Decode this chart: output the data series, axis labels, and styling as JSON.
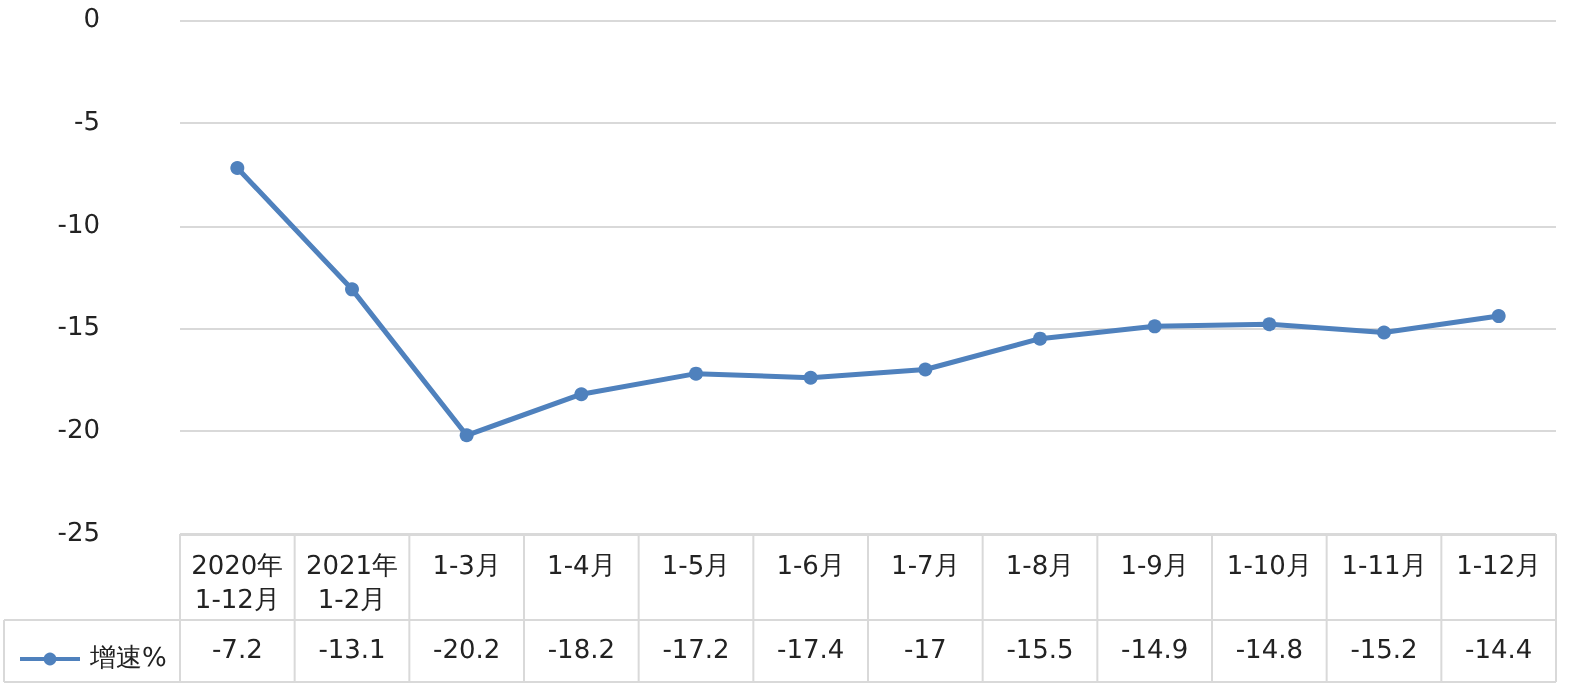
{
  "chart_data": {
    "type": "line",
    "categories": [
      "2020年\n1-12月",
      "2021年\n1-2月",
      "1-3月",
      "1-4月",
      "1-5月",
      "1-6月",
      "1-7月",
      "1-8月",
      "1-9月",
      "1-10月",
      "1-11月",
      "1-12月"
    ],
    "series": [
      {
        "name": "增速%",
        "color": "#4f81bd",
        "values": [
          -7.2,
          -13.1,
          -20.2,
          -18.2,
          -17.2,
          -17.4,
          -17,
          -15.5,
          -14.9,
          -14.8,
          -15.2,
          -14.4
        ]
      }
    ],
    "ylim": [
      -25,
      0
    ],
    "yticks": [
      -25,
      -20,
      -15,
      -10,
      -5,
      0
    ],
    "grid": "y",
    "legend": "bottom left",
    "marker": "circle",
    "line_style": "solid",
    "data_labels": true
  }
}
